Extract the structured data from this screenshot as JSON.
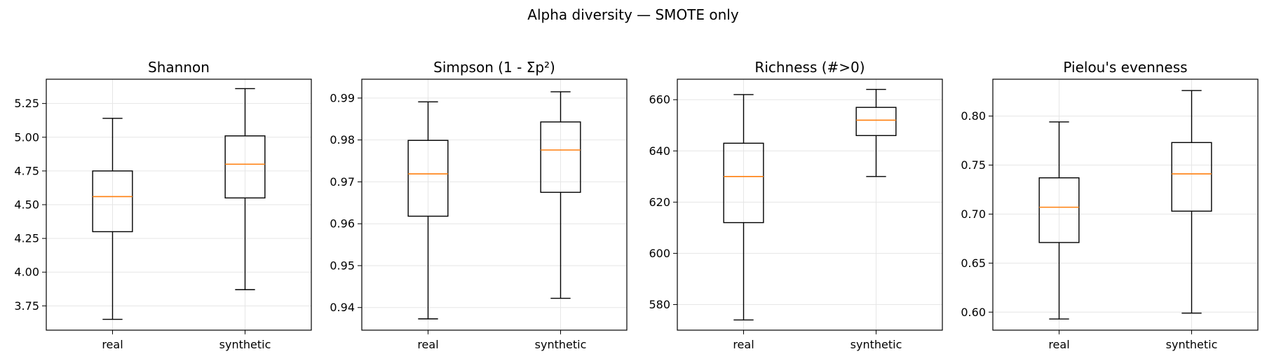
{
  "figure": {
    "title": "Alpha diversity — SMOTE only"
  },
  "style": {
    "box": "#000000",
    "median": "#ff7f0e",
    "grid": "#e6e6e6"
  },
  "chart_data": [
    {
      "type": "box",
      "title": "Shannon",
      "categories": [
        "real",
        "synthetic"
      ],
      "ylim": [
        3.57,
        5.43
      ],
      "yticks": [
        "3.75",
        "4.00",
        "4.25",
        "4.50",
        "4.75",
        "5.00",
        "5.25"
      ],
      "boxes": [
        {
          "whislo": 3.65,
          "q1": 4.3,
          "med": 4.56,
          "q3": 4.75,
          "whishi": 5.14
        },
        {
          "whislo": 3.87,
          "q1": 4.55,
          "med": 4.8,
          "q3": 5.01,
          "whishi": 5.36
        }
      ],
      "grid": true
    },
    {
      "type": "box",
      "title": "Simpson (1 - Σp²)",
      "categories": [
        "real",
        "synthetic"
      ],
      "ylim": [
        0.9346,
        0.9945
      ],
      "yticks": [
        "0.94",
        "0.95",
        "0.96",
        "0.97",
        "0.98",
        "0.99"
      ],
      "boxes": [
        {
          "whislo": 0.9373,
          "q1": 0.9618,
          "med": 0.9719,
          "q3": 0.9799,
          "whishi": 0.9891
        },
        {
          "whislo": 0.9422,
          "q1": 0.9675,
          "med": 0.9776,
          "q3": 0.9843,
          "whishi": 0.9915
        }
      ],
      "grid": true
    },
    {
      "type": "box",
      "title": "Richness (#>0)",
      "categories": [
        "real",
        "synthetic"
      ],
      "ylim": [
        570,
        668
      ],
      "yticks": [
        "580",
        "600",
        "620",
        "640",
        "660"
      ],
      "boxes": [
        {
          "whislo": 574,
          "q1": 612,
          "med": 630,
          "q3": 643,
          "whishi": 662
        },
        {
          "whislo": 630,
          "q1": 646,
          "med": 652,
          "q3": 657,
          "whishi": 664
        }
      ],
      "grid": true
    },
    {
      "type": "box",
      "title": "Pielou's evenness",
      "categories": [
        "real",
        "synthetic"
      ],
      "ylim": [
        0.5816,
        0.8376
      ],
      "yticks": [
        "0.60",
        "0.65",
        "0.70",
        "0.75",
        "0.80"
      ],
      "boxes": [
        {
          "whislo": 0.593,
          "q1": 0.671,
          "med": 0.707,
          "q3": 0.737,
          "whishi": 0.794
        },
        {
          "whislo": 0.599,
          "q1": 0.703,
          "med": 0.741,
          "q3": 0.773,
          "whishi": 0.826
        }
      ],
      "grid": true
    }
  ]
}
